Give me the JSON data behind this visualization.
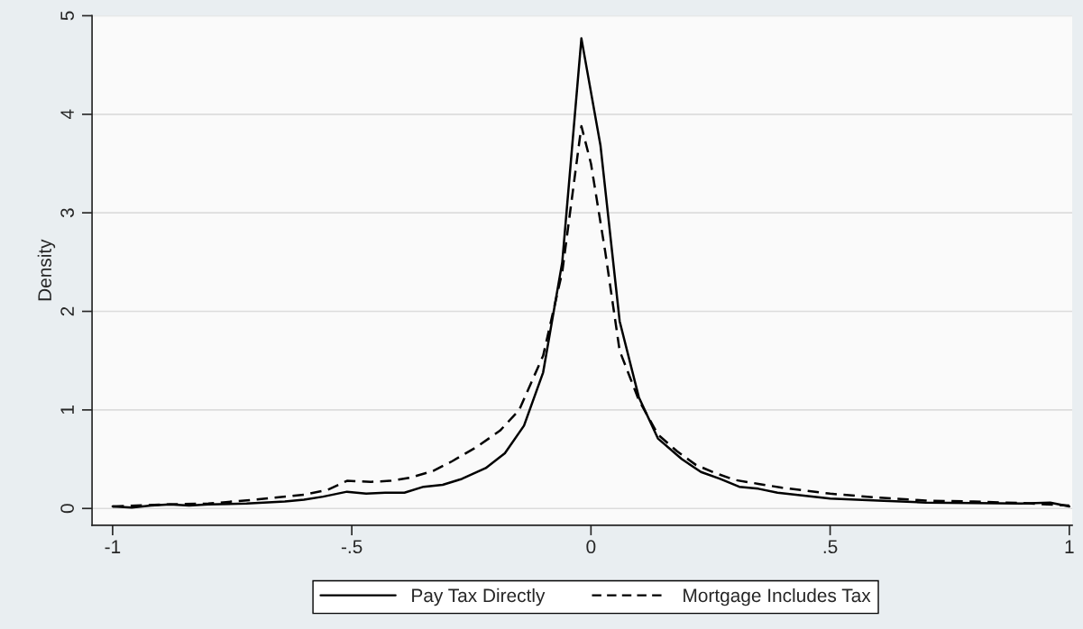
{
  "chart_data": {
    "type": "line",
    "ylabel": "Density",
    "xlim": [
      -1.043,
      1.006
    ],
    "ylim": [
      -0.17,
      5.0
    ],
    "xticks": [
      {
        "value": -1,
        "label": "-1"
      },
      {
        "value": -0.5,
        "label": "-.5"
      },
      {
        "value": 0,
        "label": "0"
      },
      {
        "value": 0.5,
        "label": ".5"
      },
      {
        "value": 1,
        "label": "1"
      }
    ],
    "yticks": [
      0,
      1,
      2,
      3,
      4,
      5
    ],
    "grid": "y",
    "legend": "bottom",
    "series": [
      {
        "name": "Pay Tax Directly",
        "color": "#000000",
        "line_style": "solid",
        "x": [
          -1,
          -0.96,
          -0.92,
          -0.88,
          -0.84,
          -0.8,
          -0.72,
          -0.64,
          -0.6,
          -0.56,
          -0.51,
          -0.47,
          -0.43,
          -0.39,
          -0.35,
          -0.31,
          -0.27,
          -0.22,
          -0.18,
          -0.14,
          -0.1,
          -0.06,
          -0.02,
          0.02,
          0.06,
          0.1,
          0.14,
          0.19,
          0.23,
          0.27,
          0.31,
          0.35,
          0.39,
          0.5,
          0.6,
          0.7,
          0.8,
          0.9,
          0.96,
          1.0
        ],
        "values": [
          0.02,
          0.01,
          0.03,
          0.04,
          0.03,
          0.04,
          0.05,
          0.07,
          0.09,
          0.12,
          0.17,
          0.15,
          0.16,
          0.16,
          0.22,
          0.24,
          0.3,
          0.41,
          0.56,
          0.84,
          1.38,
          2.5,
          4.77,
          3.68,
          1.9,
          1.13,
          0.71,
          0.5,
          0.37,
          0.3,
          0.22,
          0.2,
          0.16,
          0.1,
          0.08,
          0.06,
          0.055,
          0.05,
          0.06,
          0.02
        ]
      },
      {
        "name": "Mortgage Includes Tax",
        "color": "#000000",
        "line_style": "dashed",
        "x": [
          -1,
          -0.9,
          -0.8,
          -0.7,
          -0.6,
          -0.55,
          -0.51,
          -0.46,
          -0.42,
          -0.38,
          -0.33,
          -0.29,
          -0.24,
          -0.19,
          -0.15,
          -0.1,
          -0.06,
          -0.02,
          0.0,
          0.03,
          0.06,
          0.1,
          0.14,
          0.18,
          0.22,
          0.26,
          0.3,
          0.35,
          0.4,
          0.5,
          0.6,
          0.7,
          0.8,
          0.9,
          1.0
        ],
        "values": [
          0.02,
          0.04,
          0.05,
          0.09,
          0.14,
          0.19,
          0.28,
          0.27,
          0.28,
          0.31,
          0.38,
          0.48,
          0.62,
          0.79,
          1.0,
          1.55,
          2.4,
          3.88,
          3.5,
          2.6,
          1.6,
          1.1,
          0.75,
          0.58,
          0.44,
          0.36,
          0.29,
          0.25,
          0.21,
          0.15,
          0.11,
          0.08,
          0.07,
          0.055,
          0.03
        ]
      }
    ]
  }
}
